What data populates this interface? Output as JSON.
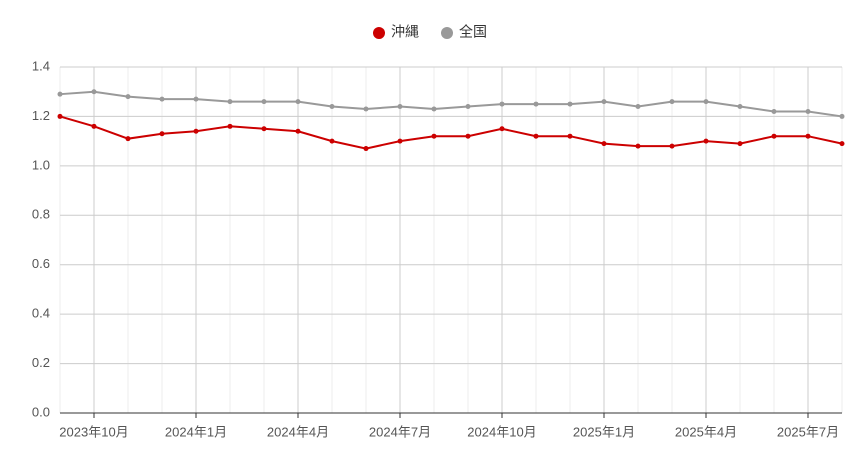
{
  "chart_data": {
    "type": "line",
    "categories": [
      null,
      "2023年10月",
      null,
      null,
      "2024年1月",
      null,
      null,
      "2024年4月",
      null,
      null,
      "2024年7月",
      null,
      null,
      "2024年10月",
      null,
      null,
      "2025年1月",
      null,
      null,
      "2025年4月",
      null,
      null,
      "2025年7月",
      null
    ],
    "series": [
      {
        "name": "沖縄",
        "color": "#cc0000",
        "values": [
          1.2,
          1.16,
          1.11,
          1.13,
          1.14,
          1.16,
          1.15,
          1.14,
          1.1,
          1.07,
          1.1,
          1.12,
          1.12,
          1.15,
          1.12,
          1.12,
          1.09,
          1.08,
          1.08,
          1.1,
          1.09,
          1.12,
          1.12,
          1.09
        ]
      },
      {
        "name": "全国",
        "color": "#999999",
        "values": [
          1.29,
          1.3,
          1.28,
          1.27,
          1.27,
          1.26,
          1.26,
          1.26,
          1.24,
          1.23,
          1.24,
          1.23,
          1.24,
          1.25,
          1.25,
          1.25,
          1.26,
          1.24,
          1.26,
          1.26,
          1.24,
          1.22,
          1.22,
          1.2
        ]
      }
    ],
    "ylim": [
      0,
      1.4
    ],
    "yticks": [
      {
        "value": 0,
        "label": "0.0"
      },
      0.2,
      0.4,
      0.6,
      0.8,
      {
        "value": 1,
        "label": "1.0"
      },
      1.2,
      1.4
    ],
    "grid": true,
    "legend": "top"
  }
}
